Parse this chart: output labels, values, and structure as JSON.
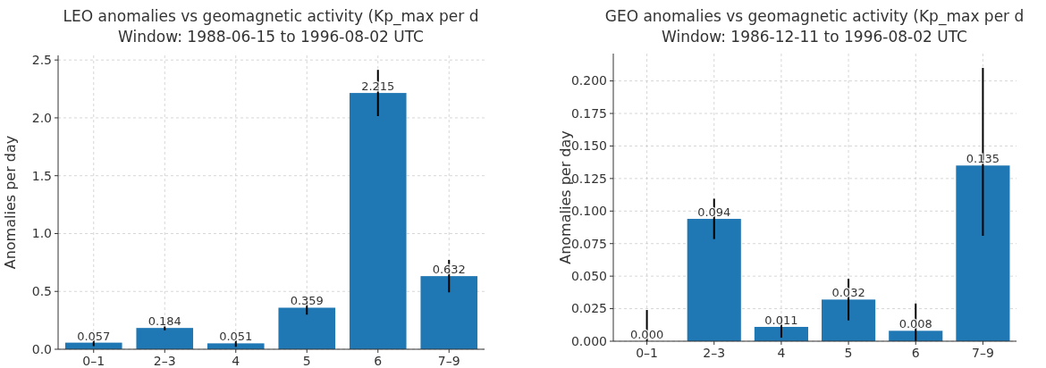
{
  "chart_data": [
    {
      "type": "bar",
      "title": "LEO anomalies vs geomagnetic activity (Kp_max per d",
      "subtitle": "Window: 1988-06-15 to 1996-08-02 UTC",
      "ylabel": "Anomalies per day",
      "categories": [
        "0–1",
        "2–3",
        "4",
        "5",
        "6",
        "7–9"
      ],
      "color": "#1f77b4",
      "values": [
        0.057,
        0.184,
        0.051,
        0.359,
        2.215,
        0.632
      ],
      "value_labels": [
        "0.057",
        "0.184",
        "0.051",
        "0.359",
        "2.215",
        "0.632"
      ],
      "errors": [
        0.03,
        0.02,
        0.03,
        0.06,
        0.2,
        0.14
      ],
      "ylim": [
        0,
        2.54
      ],
      "yticks": [
        {
          "value": 0,
          "label": "0.0"
        },
        {
          "value": 0.5,
          "label": "0.5"
        },
        {
          "value": 1,
          "label": "1.0"
        },
        {
          "value": 1.5,
          "label": "1.5"
        },
        {
          "value": 2,
          "label": "2.0"
        },
        {
          "value": 2.5,
          "label": "2.5"
        }
      ],
      "grid": true
    },
    {
      "type": "bar",
      "title": "GEO anomalies vs geomagnetic activity (Kp_max per d",
      "subtitle": "Window: 1986-12-11 to 1996-08-02 UTC",
      "ylabel": "Anomalies per day",
      "categories": [
        "0–1",
        "2–3",
        "4",
        "5",
        "6",
        "7–9"
      ],
      "color": "#1f77b4",
      "values": [
        0,
        0.094,
        0.011,
        0.032,
        0.008,
        0.135
      ],
      "value_labels": [
        "0.000",
        "0.094",
        "0.011",
        "0.032",
        "0.008",
        "0.135"
      ],
      "errors": [
        [
          0,
          0.024
        ],
        0.0155,
        0.0083,
        0.016,
        [
          0,
          0.029
        ],
        [
          0.081,
          0.21
        ]
      ],
      "ylim": [
        0,
        0.221
      ],
      "yticks": [
        {
          "value": 0,
          "label": "0.000"
        },
        {
          "value": 0.025,
          "label": "0.025"
        },
        {
          "value": 0.05,
          "label": "0.050"
        },
        {
          "value": 0.075,
          "label": "0.075"
        },
        {
          "value": 0.1,
          "label": "0.100"
        },
        {
          "value": 0.125,
          "label": "0.125"
        },
        {
          "value": 0.15,
          "label": "0.150"
        },
        {
          "value": 0.175,
          "label": "0.175"
        },
        {
          "value": 0.2,
          "label": "0.200"
        }
      ],
      "grid": true
    }
  ]
}
